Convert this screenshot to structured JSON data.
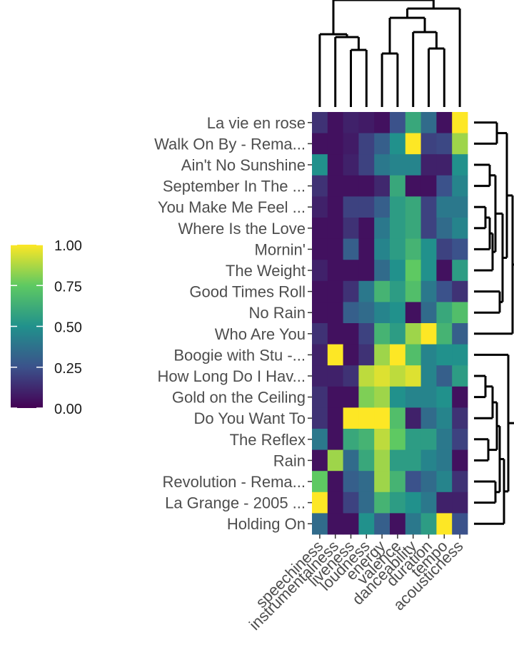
{
  "chart_data": {
    "type": "heatmap",
    "title": "",
    "xlabel": "",
    "ylabel": "",
    "colorscale": "viridis",
    "color_range": [
      0,
      1
    ],
    "colors": [
      "#440154",
      "#3b528b",
      "#21918c",
      "#5ec962",
      "#fde725"
    ],
    "columns": [
      "speechiness",
      "instrumentalness",
      "liveness",
      "loudness",
      "energy",
      "valence",
      "danceability",
      "duration",
      "tempo",
      "acousticness"
    ],
    "rows": [
      "La vie en rose",
      "Walk On By - Rema...",
      "Ain't No Sunshine",
      "September In The ...",
      "You Make Me Feel ...",
      "Where Is the Love",
      "Mornin'",
      "The Weight",
      "Good Times Roll",
      "No Rain",
      "Who Are You",
      "Boogie with Stu -...",
      "How Long Do I Hav...",
      "Gold on the Ceiling",
      "Do You Want To",
      "The Reflex",
      "Rain",
      "Revolution - Rema...",
      "La Grange - 2005 ...",
      "Holding On"
    ],
    "values": [
      [
        0.15,
        0.05,
        0.1,
        0.08,
        0.05,
        0.25,
        0.6,
        0.35,
        0.05,
        1.0
      ],
      [
        0.05,
        0.05,
        0.08,
        0.2,
        0.3,
        0.5,
        1.0,
        0.2,
        0.22,
        0.85
      ],
      [
        0.5,
        0.05,
        0.1,
        0.2,
        0.4,
        0.45,
        0.45,
        0.1,
        0.1,
        0.5
      ],
      [
        0.15,
        0.05,
        0.05,
        0.05,
        0.12,
        0.6,
        0.05,
        0.05,
        0.25,
        0.45
      ],
      [
        0.1,
        0.05,
        0.2,
        0.2,
        0.3,
        0.55,
        0.6,
        0.2,
        0.4,
        0.4
      ],
      [
        0.05,
        0.05,
        0.15,
        0.05,
        0.4,
        0.55,
        0.6,
        0.2,
        0.35,
        0.45
      ],
      [
        0.05,
        0.05,
        0.3,
        0.05,
        0.45,
        0.55,
        0.65,
        0.5,
        0.2,
        0.25
      ],
      [
        0.1,
        0.05,
        0.05,
        0.05,
        0.35,
        0.5,
        0.75,
        0.5,
        0.05,
        0.55
      ],
      [
        0.05,
        0.05,
        0.15,
        0.4,
        0.65,
        0.55,
        0.7,
        0.4,
        0.25,
        0.15
      ],
      [
        0.05,
        0.05,
        0.3,
        0.35,
        0.45,
        0.5,
        0.05,
        0.35,
        0.6,
        0.7
      ],
      [
        0.15,
        0.05,
        0.05,
        0.2,
        0.65,
        0.55,
        0.85,
        1.0,
        0.65,
        0.3
      ],
      [
        0.1,
        1.0,
        0.05,
        0.15,
        0.85,
        1.0,
        0.7,
        0.45,
        0.5,
        0.5
      ],
      [
        0.1,
        0.1,
        0.15,
        0.9,
        0.95,
        0.9,
        0.95,
        0.45,
        0.3,
        0.55
      ],
      [
        0.15,
        0.05,
        0.05,
        0.8,
        0.85,
        0.5,
        0.45,
        0.45,
        0.5,
        0.05
      ],
      [
        0.15,
        0.05,
        1.0,
        1.0,
        1.0,
        0.7,
        0.1,
        0.35,
        0.45,
        0.15
      ],
      [
        0.4,
        0.05,
        0.6,
        0.65,
        0.9,
        0.75,
        0.55,
        0.55,
        0.4,
        0.2
      ],
      [
        0.05,
        0.85,
        0.35,
        0.6,
        0.85,
        0.55,
        0.55,
        0.45,
        0.4,
        0.05
      ],
      [
        0.75,
        0.05,
        0.3,
        0.35,
        0.85,
        0.65,
        0.25,
        0.35,
        0.45,
        0.15
      ],
      [
        1.0,
        0.05,
        0.2,
        0.35,
        0.65,
        0.55,
        0.5,
        0.4,
        0.1,
        0.1
      ],
      [
        0.35,
        0.05,
        0.05,
        0.5,
        0.3,
        0.05,
        0.4,
        0.55,
        1.0,
        0.25
      ]
    ],
    "legend": {
      "position": "left",
      "ticks": [
        "1.00",
        "0.75",
        "0.50",
        "0.25",
        "0.00"
      ]
    },
    "dendrograms": [
      "columns-top",
      "rows-right"
    ]
  }
}
